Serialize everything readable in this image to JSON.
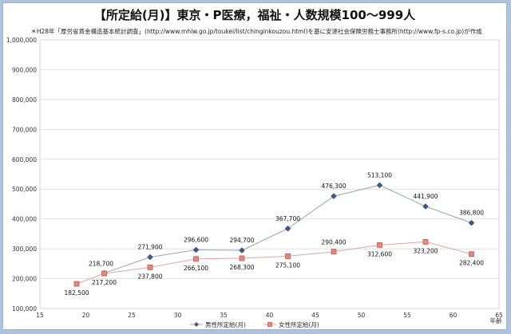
{
  "chart_data": {
    "type": "line",
    "title": "【所定給(月)】東京・P医療，福祉・人数規模100～999人",
    "subtitle": "＊H28年「厚労省賃金構造基本統計調査」(http://www.mhlw.go.jp/toukei/list/chinginkouzou.html)を基に安達社会保険労務士事務所(http://www.fp-s.co.jp)が作成",
    "xlabel": "年齢",
    "ylabel": "",
    "xlim": [
      15,
      65
    ],
    "ylim": [
      100000,
      1000000
    ],
    "x_ticks": [
      "15",
      "20",
      "25",
      "30",
      "35",
      "40",
      "45",
      "50",
      "55",
      "60",
      "65"
    ],
    "y_ticks": [
      "100,000",
      "200,000",
      "300,000",
      "400,000",
      "500,000",
      "600,000",
      "700,000",
      "800,000",
      "900,000",
      "1,000,000"
    ],
    "grid": true,
    "legend_position": "bottom",
    "series": [
      {
        "name": "男性所定給(月)",
        "color": "#3b5a86",
        "marker": "diamond",
        "x": [
          22,
          27,
          32,
          37,
          42,
          47,
          52,
          57,
          62
        ],
        "values": [
          218700,
          271900,
          296600,
          294700,
          367700,
          476300,
          513100,
          441900,
          386800
        ],
        "labels": [
          "218,700",
          "271,900",
          "296,600",
          "294,700",
          "367,700",
          "476,300",
          "513,100",
          "441,900",
          "386,800"
        ]
      },
      {
        "name": "女性所定給(月)",
        "color": "#c9574c",
        "marker": "square",
        "x": [
          19,
          22,
          27,
          32,
          37,
          42,
          47,
          52,
          57,
          62
        ],
        "values": [
          182500,
          217200,
          237800,
          266100,
          268300,
          275100,
          290400,
          312600,
          323200,
          282400
        ],
        "labels": [
          "182,500",
          "217,200",
          "237,800",
          "266,100",
          "268,300",
          "275,100",
          "290,400",
          "312,600",
          "323,200",
          "282,400"
        ]
      }
    ]
  }
}
